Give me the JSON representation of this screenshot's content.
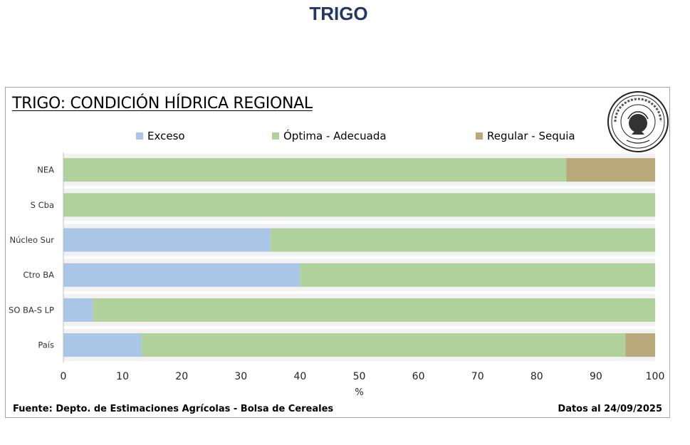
{
  "page_title": "TRIGO",
  "chart_data": {
    "type": "bar",
    "orientation": "horizontal",
    "stacked": true,
    "title": "TRIGO: CONDICIÓN HÍDRICA REGIONAL",
    "xlabel": "%",
    "ylabel": "",
    "xlim": [
      0,
      100
    ],
    "x_ticks": [
      0,
      10,
      20,
      30,
      40,
      50,
      60,
      70,
      80,
      90,
      100
    ],
    "categories": [
      "NEA",
      "S Cba",
      "Núcleo Sur",
      "Ctro BA",
      "SO BA-S LP",
      "País"
    ],
    "series": [
      {
        "name": "Exceso",
        "color": "#a9c6e6",
        "values": [
          0,
          0,
          35,
          40,
          5,
          13.2
        ]
      },
      {
        "name": "Óptima - Adecuada",
        "color": "#b0d09c",
        "values": [
          85,
          100,
          65,
          60,
          95,
          81.8
        ]
      },
      {
        "name": "Regular - Sequia",
        "color": "#b9a87a",
        "values": [
          15,
          0,
          0,
          0,
          0,
          5
        ]
      }
    ],
    "legend_position": "top",
    "grid": false
  },
  "footer": {
    "source": "Fuente: Depto. de Estimaciones Agrícolas - Bolsa de Cereales",
    "date": "Datos al 24/09/2025"
  },
  "logo": {
    "text": "Bolsa de Cereales",
    "motto": "Comercio · et · Pax",
    "city": "Buenos Aires"
  }
}
